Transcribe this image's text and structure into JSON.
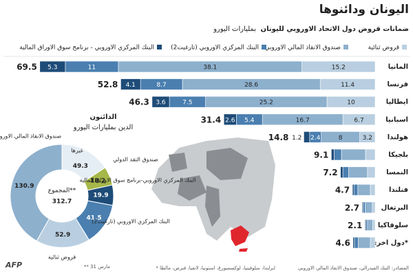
{
  "chart_data": [
    {
      "type": "bar",
      "orientation": "horizontal",
      "title": "اليونان ودائنوها",
      "subtitle": "ضمانات قروض دول الاتحاد الاوروبي لليونان",
      "unit": "بمليارات اليورو",
      "categories": [
        "المانيا",
        "فرنسا",
        "ايطاليا",
        "اسبانيا",
        "هولندا",
        "بلجيكا",
        "النمسا",
        "فنلندا",
        "البرتغال",
        "سلوفاكيا",
        "دول اخرى*"
      ],
      "totals": [
        69.5,
        52.8,
        46.3,
        31.4,
        14.8,
        9.1,
        7.2,
        4.7,
        2.7,
        2.1,
        4.6
      ],
      "series": [
        {
          "name": "قروض ثنائية",
          "color": "#b9cfe1",
          "values": [
            15.2,
            11.4,
            10.0,
            6.7,
            3.2,
            2.0,
            1.6,
            1.0,
            0.6,
            0.5,
            1.0
          ]
        },
        {
          "name": "صندوق الانقاذ المالي الاوروبي",
          "color": "#8db0cd",
          "values": [
            38.1,
            28.6,
            25.2,
            16.7,
            8.0,
            5.0,
            3.9,
            2.6,
            1.5,
            1.1,
            2.5
          ]
        },
        {
          "name": "البنك المركزي الاوروبي (تارغيت2)",
          "color": "#4a7fb0",
          "values": [
            11.0,
            8.7,
            7.5,
            5.4,
            2.4,
            1.5,
            1.2,
            0.8,
            0.4,
            0.3,
            0.8
          ]
        },
        {
          "name": "البنك المركزي الاوروبي - برنامج سوق الاوراق المالية",
          "color": "#1e4c78",
          "values": [
            5.3,
            4.1,
            3.6,
            2.6,
            1.2,
            0.6,
            0.5,
            0.3,
            0.2,
            0.2,
            0.3
          ]
        }
      ]
    },
    {
      "type": "pie",
      "donut": true,
      "title": "الدائنون",
      "subtitle": "الدين بمليارات اليورو",
      "center_label": "المجموع**",
      "total": 312.7,
      "categories": [
        "غيرها",
        "صندوق النقد الدولي",
        "البنك المركزي الاوروبي-برنامج سوق الاوراق المالية",
        "البنك المركزي الاوروبي (تارغيت2)",
        "قروض ثنائية",
        "صندوق الانقاذ المالي الاوروبي"
      ],
      "values": [
        49.3,
        18.2,
        19.9,
        41.5,
        52.9,
        130.9
      ],
      "colors": [
        "#e6eef5",
        "#a7b84a",
        "#1e4c78",
        "#4a7fb0",
        "#b9cfe1",
        "#8db0cd"
      ]
    }
  ],
  "footer": {
    "source": "المصادر: البنك الفيدرالي، صندوق الانقاذ المالي الاوروبي",
    "note": "* ايرلندا، سلوفينيا، لوكسمبورغ، استونيا، لاتفيا، قبرص، مالطا",
    "note2": "** 31 مارس",
    "credit": "AFP"
  }
}
